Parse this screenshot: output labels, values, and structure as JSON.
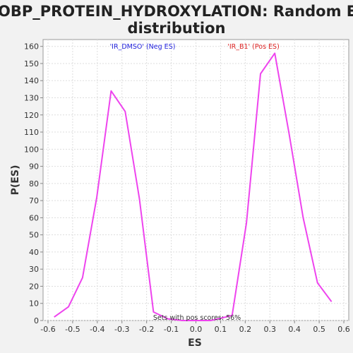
{
  "chart_data": {
    "type": "line",
    "title_lines": [
      "GOBP_PROTEIN_HYDROXYLATION: Random ES",
      "distribution"
    ],
    "xlabel": "ES",
    "ylabel": "P(ES)",
    "xlim": [
      -0.62,
      0.62
    ],
    "ylim": [
      0,
      164
    ],
    "xticks": [
      -0.6,
      -0.5,
      -0.4,
      -0.3,
      -0.2,
      -0.1,
      0.0,
      0.1,
      0.2,
      0.3,
      0.4,
      0.5,
      0.6
    ],
    "xtick_labels": [
      "-0.6",
      "-0.5",
      "-0.4",
      "-0.3",
      "-0.2",
      "-0.1",
      "0.0",
      "0.1",
      "0.2",
      "0.3",
      "0.4",
      "0.5",
      "0.6"
    ],
    "yticks": [
      0,
      10,
      20,
      30,
      40,
      50,
      60,
      70,
      80,
      90,
      100,
      110,
      120,
      130,
      140,
      150,
      160
    ],
    "ytick_labels": [
      "0",
      "10",
      "20",
      "30",
      "40",
      "50",
      "60",
      "70",
      "80",
      "90",
      "100",
      "110",
      "120",
      "130",
      "140",
      "150",
      "160"
    ],
    "grid": true,
    "series": [
      {
        "color": "#ee44ee",
        "x": [
          -0.575,
          -0.517,
          -0.46,
          -0.402,
          -0.344,
          -0.287,
          -0.229,
          -0.172,
          -0.114,
          -0.056,
          0.0,
          0.06,
          0.12,
          0.147,
          0.205,
          0.262,
          0.32,
          0.378,
          0.435,
          0.493,
          0.55
        ],
        "y": [
          2,
          8,
          25,
          72,
          134,
          122,
          71,
          5,
          1,
          0,
          0,
          0,
          2,
          3,
          57,
          144,
          156,
          109,
          60,
          22,
          11
        ]
      }
    ],
    "annotations": {
      "neg_label": "'IR_DMSO' (Neg ES)",
      "pos_label": "'IR_B1' (Pos ES)",
      "neg_color": "#2222dd",
      "pos_color": "#dd2222",
      "bottom_note": "Sets with pos scores: 56%"
    }
  }
}
